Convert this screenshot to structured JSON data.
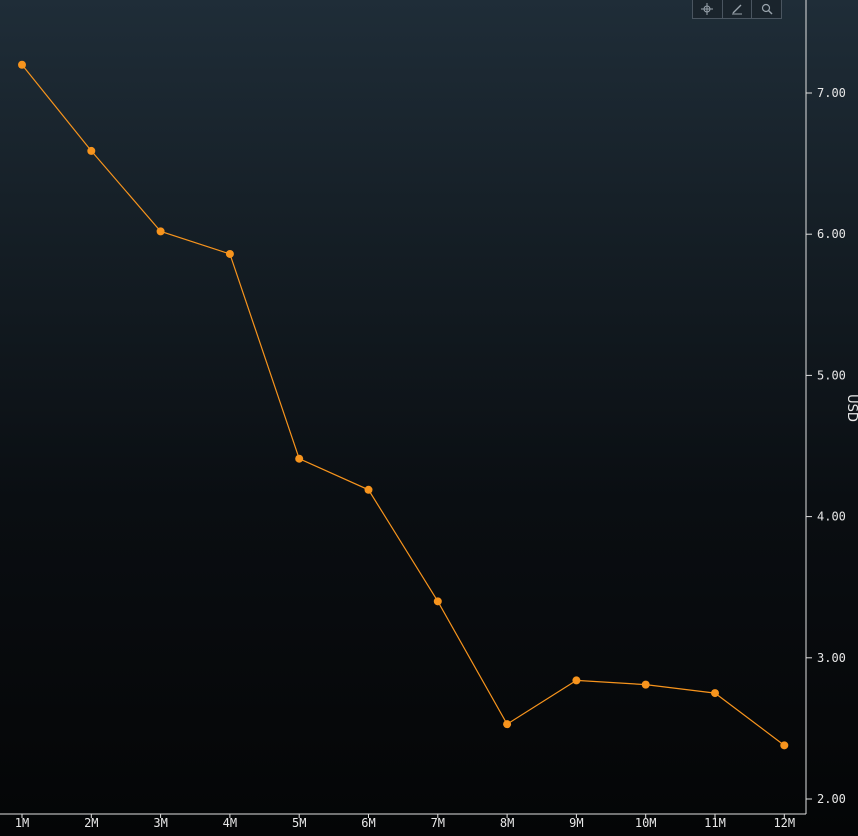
{
  "toolbar": {
    "tools": [
      {
        "name": "crosshair-icon"
      },
      {
        "name": "annotate-pencil-icon"
      },
      {
        "name": "zoom-magnifier-icon"
      }
    ]
  },
  "chart_data": {
    "type": "line",
    "categories": [
      "1M",
      "2M",
      "3M",
      "4M",
      "5M",
      "6M",
      "7M",
      "8M",
      "9M",
      "10M",
      "11M",
      "12M"
    ],
    "series": [
      {
        "values": [
          7.2,
          6.59,
          6.02,
          5.86,
          4.41,
          4.19,
          3.4,
          2.53,
          2.84,
          2.81,
          2.75,
          2.38
        ],
        "color": "#f7941d"
      }
    ],
    "ylabel": "USD",
    "yticks": [
      "2.00",
      "3.00",
      "4.00",
      "5.00",
      "6.00",
      "7.00"
    ],
    "ylim": [
      2.0,
      7.65
    ],
    "y_axis_position": "right",
    "grid": false,
    "marker": "circle",
    "colors": {
      "axis": "#e0e0e0",
      "line": "#f7941d",
      "marker": "#f7941d"
    }
  }
}
